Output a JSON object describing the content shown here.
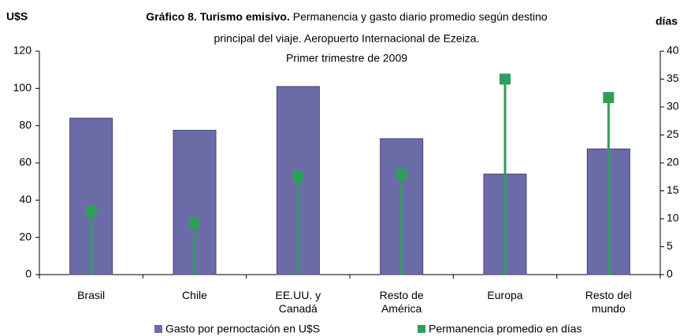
{
  "chart_data": {
    "type": "bar",
    "title": "Gráfico 8. Turismo emisivo.",
    "subtitle": [
      "Permanencia y gasto diario promedio según destino",
      "principal del viaje. Aeropuerto Internacional de Ezeiza.",
      "Primer trimestre de 2009"
    ],
    "y_label": "U$S",
    "y2_label": "días",
    "categories": [
      "Brasil",
      "Chile",
      "EE.UU. y Canadá",
      "Resto de América",
      "Europa",
      "Resto del mundo"
    ],
    "series": [
      {
        "name": "Gasto por pernoctación en U$S",
        "color": "#6b6ba8",
        "type": "bar",
        "values": [
          84,
          77.5,
          101,
          73,
          54,
          67.5
        ]
      },
      {
        "name": "Permanencia promedio en días",
        "color": "#2e9e5b",
        "type": "stem",
        "axis": "y2",
        "values": [
          11.3,
          9.3,
          17.5,
          18,
          35,
          31.7
        ]
      }
    ],
    "ylim": [
      0,
      120
    ],
    "yticks": [
      0,
      20,
      40,
      60,
      80,
      100,
      120
    ],
    "y2lim": [
      0,
      40
    ],
    "y2ticks": [
      0,
      5,
      10,
      15,
      20,
      25,
      30,
      35,
      40
    ],
    "grid": false,
    "legend": "bottom"
  }
}
